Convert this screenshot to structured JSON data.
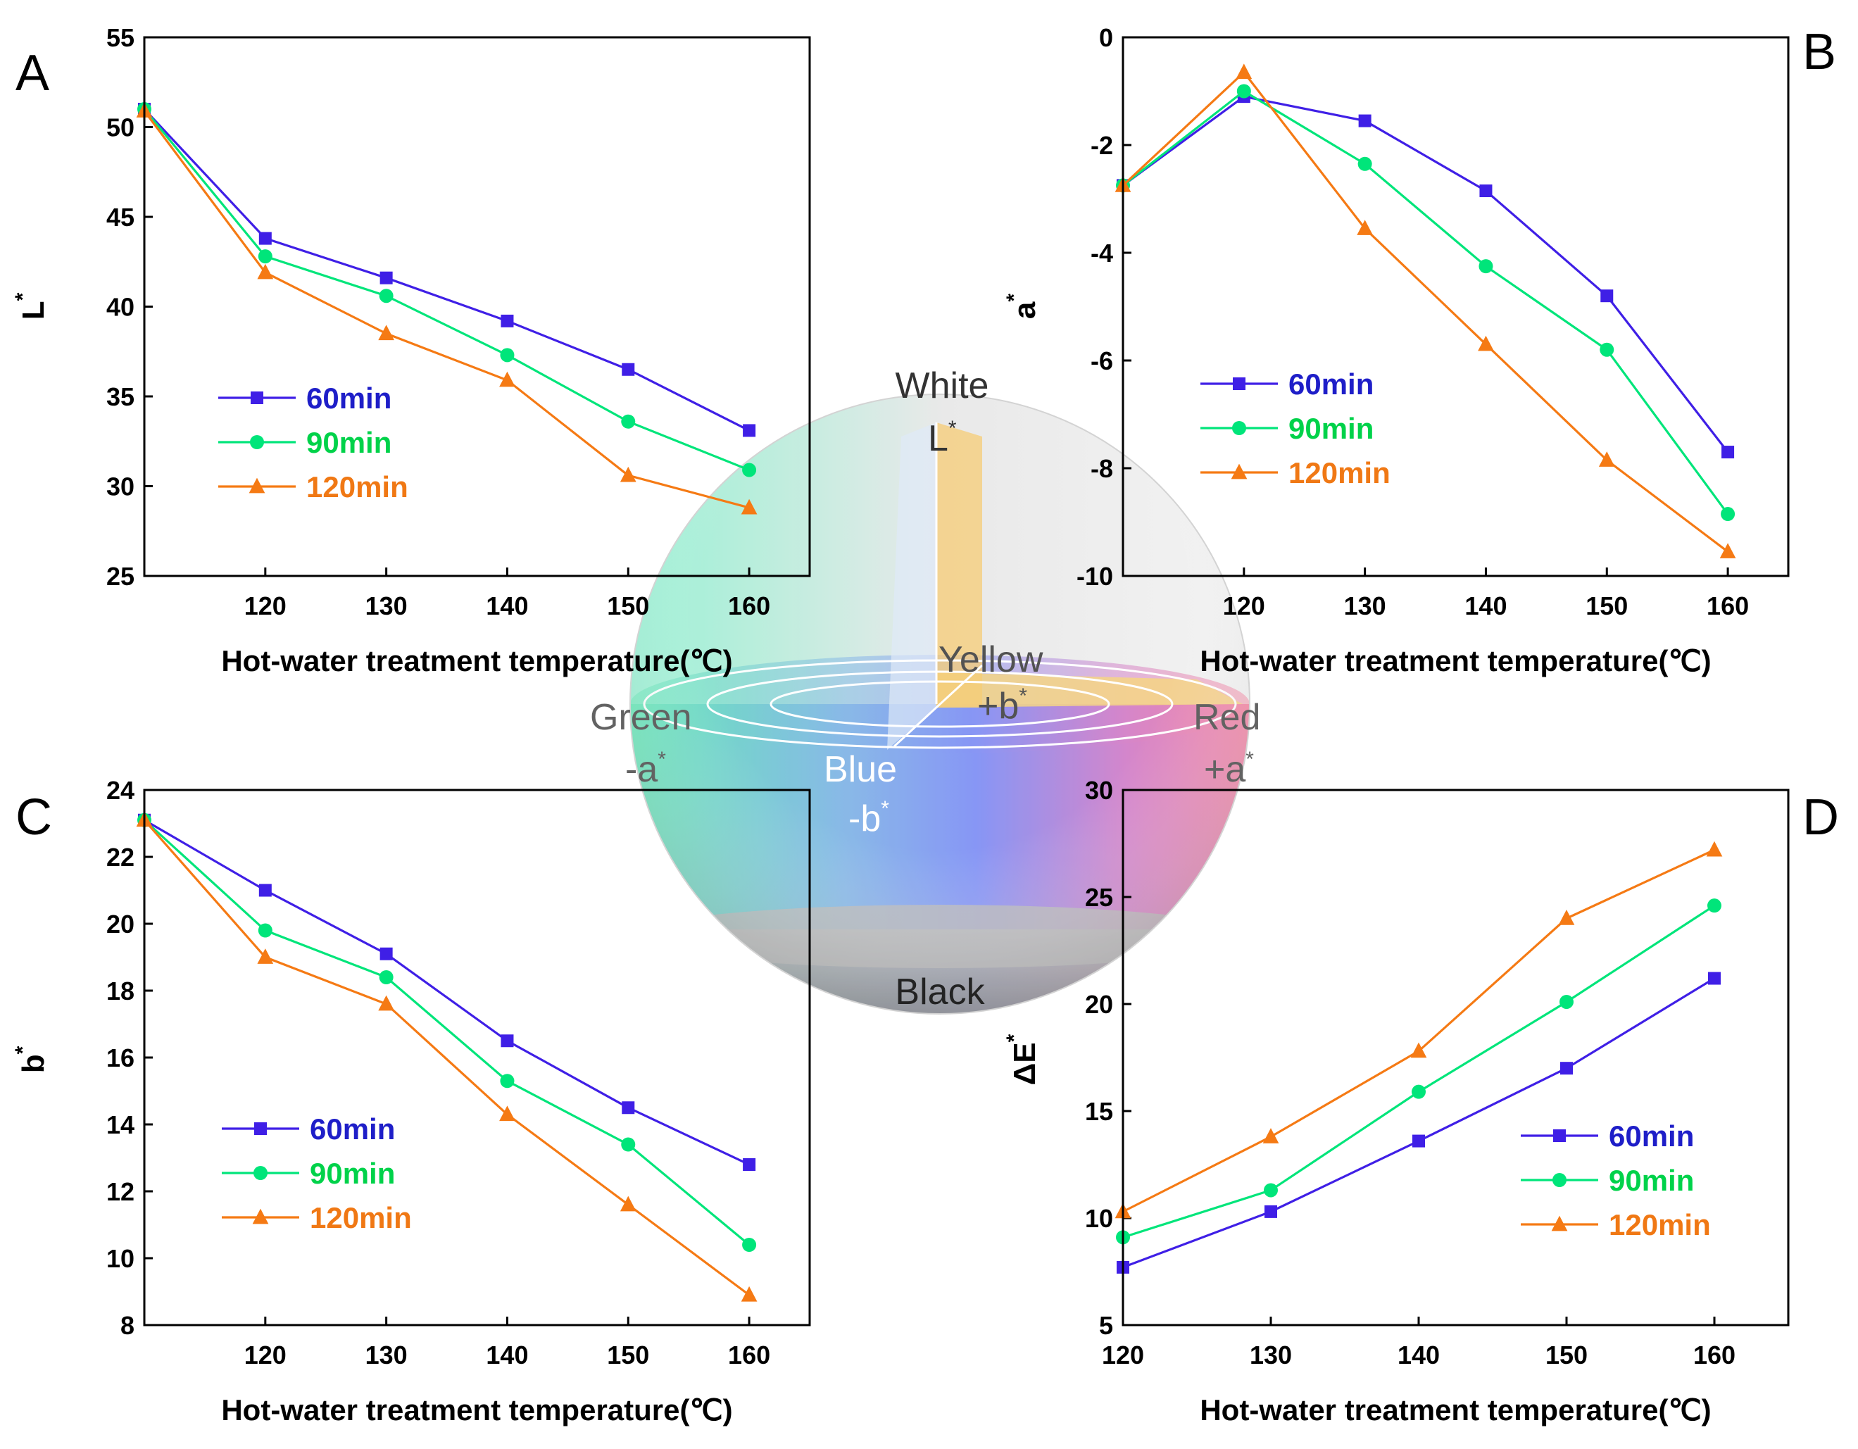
{
  "colors": {
    "60min": "#3f1fe6",
    "90min": "#00e57a",
    "120min": "#f57a14",
    "legend_60": "#1e1ec8",
    "legend_90": "#00d24a",
    "legend_120": "#f07814"
  },
  "sphere": {
    "white": "White",
    "l_axis": "L",
    "black": "Black",
    "yellow": "Yellow",
    "plus_b": "+b",
    "green": "Green",
    "minus_a": "-a",
    "red": "Red",
    "plus_a": "+a",
    "blue": "Blue",
    "minus_b": "-b",
    "star": "*"
  },
  "chart_data": [
    {
      "id": "A",
      "panel_letter": "A",
      "type": "line",
      "xlabel": "Hot-water treatment temperature(℃)",
      "ylabel": "L",
      "ylabel_sup": "*",
      "xlim": [
        110,
        165
      ],
      "ylim": [
        25,
        55
      ],
      "xticks": [
        120,
        130,
        140,
        150,
        160
      ],
      "yticks": [
        25,
        30,
        35,
        40,
        45,
        50,
        55
      ],
      "x": [
        110,
        120,
        130,
        140,
        150,
        160
      ],
      "legend_position": "center-left",
      "series": [
        {
          "name": "60min",
          "marker": "square",
          "values": [
            51.0,
            43.8,
            41.6,
            39.2,
            36.5,
            33.1
          ]
        },
        {
          "name": "90min",
          "marker": "circle",
          "values": [
            51.0,
            42.8,
            40.6,
            37.3,
            33.6,
            30.9
          ]
        },
        {
          "name": "120min",
          "marker": "triangle",
          "values": [
            50.9,
            41.9,
            38.5,
            35.9,
            30.6,
            28.8
          ]
        }
      ]
    },
    {
      "id": "B",
      "panel_letter": "B",
      "type": "line",
      "xlabel": "Hot-water treatment temperature(℃)",
      "ylabel": "a",
      "ylabel_sup": "*",
      "xlim": [
        110,
        165
      ],
      "ylim": [
        -10,
        0
      ],
      "xticks": [
        120,
        130,
        140,
        150,
        160
      ],
      "yticks": [
        -10,
        -8,
        -6,
        -4,
        -2,
        0
      ],
      "x": [
        110,
        120,
        130,
        140,
        150,
        160
      ],
      "legend_position": "center-left",
      "series": [
        {
          "name": "60min",
          "marker": "square",
          "values": [
            -2.75,
            -1.1,
            -1.55,
            -2.85,
            -4.8,
            -7.7
          ]
        },
        {
          "name": "90min",
          "marker": "circle",
          "values": [
            -2.75,
            -1.0,
            -2.35,
            -4.25,
            -5.8,
            -8.85
          ]
        },
        {
          "name": "120min",
          "marker": "triangle",
          "values": [
            -2.75,
            -0.65,
            -3.55,
            -5.7,
            -7.85,
            -9.55
          ]
        }
      ]
    },
    {
      "id": "C",
      "panel_letter": "C",
      "type": "line",
      "xlabel": "Hot-water treatment temperature(℃)",
      "ylabel": "b",
      "ylabel_sup": "*",
      "xlim": [
        110,
        165
      ],
      "ylim": [
        8,
        24
      ],
      "xticks": [
        120,
        130,
        140,
        150,
        160
      ],
      "yticks": [
        8,
        10,
        12,
        14,
        16,
        18,
        20,
        22,
        24
      ],
      "x": [
        110,
        120,
        130,
        140,
        150,
        160
      ],
      "legend_position": "center-left",
      "series": [
        {
          "name": "60min",
          "marker": "square",
          "values": [
            23.1,
            21.0,
            19.1,
            16.5,
            14.5,
            12.8
          ]
        },
        {
          "name": "90min",
          "marker": "circle",
          "values": [
            23.1,
            19.8,
            18.4,
            15.3,
            13.4,
            10.4
          ]
        },
        {
          "name": "120min",
          "marker": "triangle",
          "values": [
            23.1,
            19.0,
            17.6,
            14.3,
            11.6,
            8.9
          ]
        }
      ]
    },
    {
      "id": "D",
      "panel_letter": "D",
      "type": "line",
      "xlabel": "Hot-water treatment temperature(℃)",
      "ylabel": "ΔE",
      "ylabel_sup": "*",
      "xlim": [
        120,
        165
      ],
      "ylim": [
        5,
        30
      ],
      "xticks": [
        120,
        130,
        140,
        150,
        160
      ],
      "yticks": [
        5,
        10,
        15,
        20,
        25,
        30
      ],
      "x": [
        120,
        130,
        140,
        150,
        160
      ],
      "legend_position": "bottom-right",
      "series": [
        {
          "name": "60min",
          "marker": "square",
          "values": [
            7.7,
            10.3,
            13.6,
            17.0,
            21.2
          ]
        },
        {
          "name": "90min",
          "marker": "circle",
          "values": [
            9.1,
            11.3,
            15.9,
            20.1,
            24.6
          ]
        },
        {
          "name": "120min",
          "marker": "triangle",
          "values": [
            10.3,
            13.8,
            17.8,
            24.0,
            27.2
          ]
        }
      ]
    }
  ]
}
